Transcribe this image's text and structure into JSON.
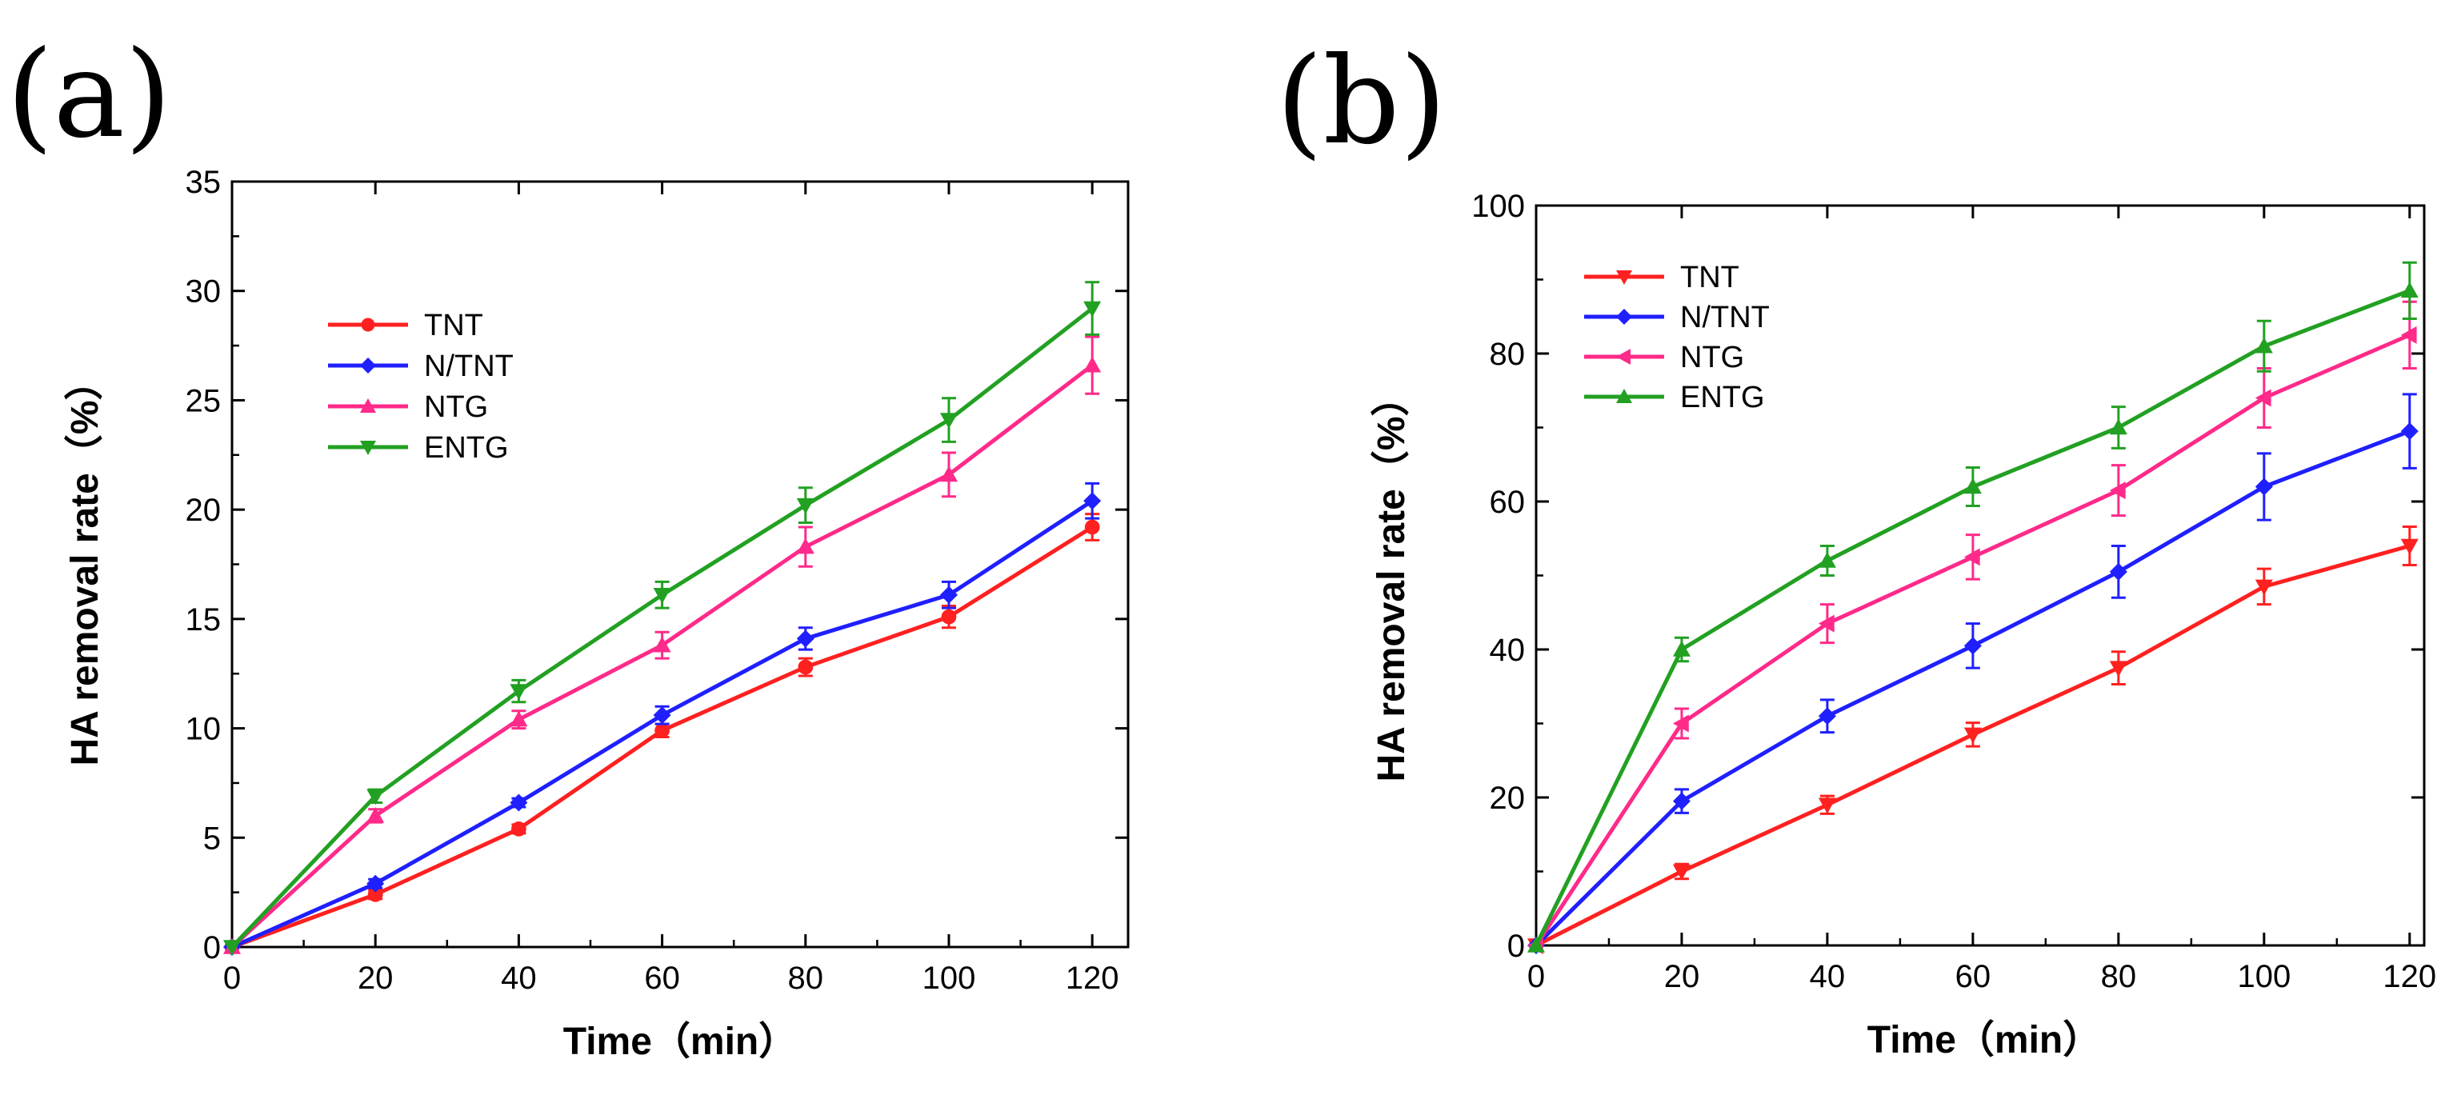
{
  "chart_data": [
    {
      "type": "line",
      "panel_label": "(a)",
      "xlabel": "Time（min）",
      "ylabel": "HA removal rate（%）",
      "x": [
        0,
        20,
        40,
        60,
        80,
        100,
        120
      ],
      "xlim": [
        0,
        125
      ],
      "ylim": [
        0,
        35
      ],
      "xticks": [
        0,
        20,
        40,
        60,
        80,
        100,
        120
      ],
      "yticks": [
        0,
        5,
        10,
        15,
        20,
        25,
        30,
        35
      ],
      "legend_position": "upper-left",
      "series": [
        {
          "name": "TNT",
          "color": "#ff2020",
          "marker": "circle",
          "values": [
            0,
            2.4,
            5.4,
            9.9,
            12.8,
            15.1,
            19.2
          ],
          "errors": [
            0,
            0.2,
            0.2,
            0.3,
            0.4,
            0.5,
            0.6
          ]
        },
        {
          "name": "N/TNT",
          "color": "#1f1fff",
          "marker": "diamond",
          "values": [
            0,
            2.9,
            6.6,
            10.6,
            14.1,
            16.1,
            20.4
          ],
          "errors": [
            0,
            0.2,
            0.2,
            0.4,
            0.5,
            0.6,
            0.8
          ]
        },
        {
          "name": "NTG",
          "color": "#ff2a8a",
          "marker": "triangle-up",
          "values": [
            0,
            6.0,
            10.4,
            13.8,
            18.3,
            21.6,
            26.6
          ],
          "errors": [
            0,
            0.3,
            0.4,
            0.6,
            0.9,
            1.0,
            1.3
          ]
        },
        {
          "name": "ENTG",
          "color": "#22a022",
          "marker": "triangle-down",
          "values": [
            0,
            6.9,
            11.7,
            16.1,
            20.2,
            24.1,
            29.2
          ],
          "errors": [
            0,
            0.3,
            0.5,
            0.6,
            0.8,
            1.0,
            1.2
          ]
        }
      ]
    },
    {
      "type": "line",
      "panel_label": "(b)",
      "xlabel": "Time（min）",
      "ylabel": "HA removal rate（%）",
      "x": [
        0,
        20,
        40,
        60,
        80,
        100,
        120
      ],
      "xlim": [
        0,
        122
      ],
      "ylim": [
        0,
        100
      ],
      "xticks": [
        0,
        20,
        40,
        60,
        80,
        100,
        120
      ],
      "yticks": [
        0,
        20,
        40,
        60,
        80,
        100
      ],
      "legend_position": "upper-left",
      "series": [
        {
          "name": "TNT",
          "color": "#ff2020",
          "marker": "triangle-down",
          "values": [
            0,
            10,
            19,
            28.5,
            37.5,
            48.5,
            54
          ],
          "errors": [
            0,
            1.0,
            1.2,
            1.6,
            2.2,
            2.4,
            2.6
          ]
        },
        {
          "name": "N/TNT",
          "color": "#1f1fff",
          "marker": "diamond",
          "values": [
            0,
            19.5,
            31,
            40.5,
            50.5,
            62,
            69.5
          ],
          "errors": [
            0,
            1.6,
            2.2,
            3.0,
            3.5,
            4.5,
            5.0
          ]
        },
        {
          "name": "NTG",
          "color": "#ff2a8a",
          "marker": "triangle-left",
          "values": [
            0,
            30,
            43.5,
            52.5,
            61.5,
            74,
            82.5
          ],
          "errors": [
            0,
            2.0,
            2.6,
            3.0,
            3.4,
            4.0,
            4.5
          ]
        },
        {
          "name": "ENTG",
          "color": "#22a022",
          "marker": "triangle-up",
          "values": [
            0,
            40,
            52,
            62,
            70,
            81,
            88.5
          ],
          "errors": [
            0,
            1.6,
            2.0,
            2.6,
            2.8,
            3.4,
            3.8
          ]
        }
      ]
    }
  ]
}
